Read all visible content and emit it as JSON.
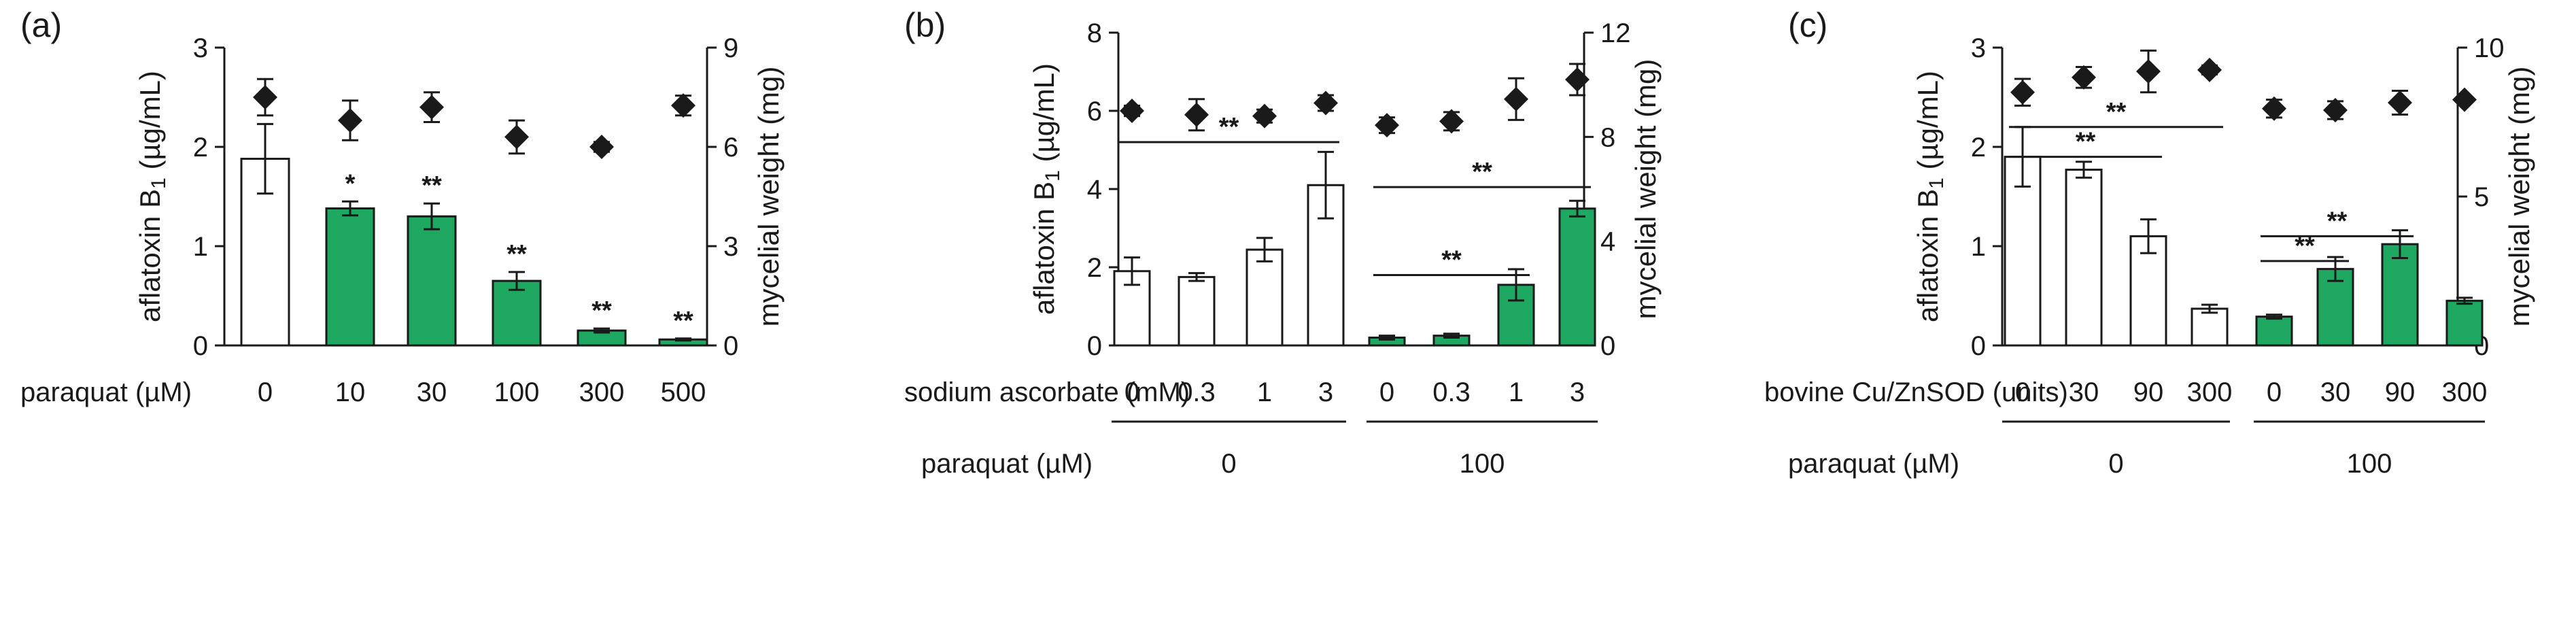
{
  "chart_data": [
    {
      "type": "bar",
      "panel": "(a)",
      "ylabel_left": "aflatoxin B",
      "ylabel_left_sub": "1",
      "ylabel_left_unit": " (µg/mL)",
      "ylabel_right": "mycelial weight (mg)",
      "ylim_left": [
        0,
        3
      ],
      "ylim_right": [
        0,
        9
      ],
      "yticks_left": [
        "0",
        "1",
        "2",
        "3"
      ],
      "yticks_right": [
        "0",
        "3",
        "6",
        "9"
      ],
      "factor_label": "paraquat (µM)",
      "categories": [
        "0",
        "10",
        "30",
        "100",
        "300",
        "500"
      ],
      "series": [
        {
          "name": "aflatoxin B1",
          "values": [
            1.88,
            1.38,
            1.3,
            0.65,
            0.15,
            0.06
          ],
          "errors": [
            0.35,
            0.07,
            0.13,
            0.09,
            0.02,
            0.01
          ],
          "fills": [
            "white",
            "green",
            "green",
            "green",
            "green",
            "green"
          ]
        },
        {
          "name": "mycelial weight",
          "values": [
            7.5,
            6.8,
            7.2,
            6.3,
            6.0,
            7.25
          ],
          "errors": [
            0.55,
            0.6,
            0.45,
            0.5,
            0.15,
            0.3
          ]
        }
      ],
      "significance": [
        "",
        "*",
        "**",
        "**",
        "**",
        "**"
      ]
    },
    {
      "type": "bar",
      "panel": "(b)",
      "ylabel_left": "aflatoxin B",
      "ylabel_left_sub": "1",
      "ylabel_left_unit": " (µg/mL)",
      "ylabel_right": "mycelial weight (mg)",
      "ylim_left": [
        0,
        8
      ],
      "ylim_right": [
        0,
        12
      ],
      "yticks_left": [
        "0",
        "2",
        "4",
        "6",
        "8"
      ],
      "yticks_right": [
        "0",
        "4",
        "8",
        "12"
      ],
      "factor_label": "sodium ascorbate (mM)",
      "categories": [
        "0",
        "0.3",
        "1",
        "3",
        "0",
        "0.3",
        "1",
        "3"
      ],
      "group_label": "paraquat (µM)",
      "groups": [
        "0",
        "100"
      ],
      "series": [
        {
          "name": "aflatoxin B1",
          "values": [
            1.9,
            1.75,
            2.45,
            4.1,
            0.2,
            0.25,
            1.55,
            3.5
          ],
          "errors": [
            0.35,
            0.1,
            0.3,
            0.85,
            0.05,
            0.05,
            0.4,
            0.2
          ],
          "fills": [
            "white",
            "white",
            "white",
            "white",
            "green",
            "green",
            "green",
            "green"
          ]
        },
        {
          "name": "mycelial weight",
          "values": [
            9.0,
            8.85,
            8.8,
            9.3,
            8.45,
            8.6,
            9.45,
            10.2
          ],
          "errors": [
            0.2,
            0.6,
            0.25,
            0.3,
            0.3,
            0.35,
            0.8,
            0.6
          ]
        }
      ],
      "brackets": [
        {
          "from": 0,
          "to": 3,
          "y": 5.2,
          "label": "**"
        },
        {
          "from": 4,
          "to": 7,
          "y": 4.05,
          "label": "**"
        },
        {
          "from": 4,
          "to": 6,
          "y": 1.8,
          "label": "**"
        }
      ]
    },
    {
      "type": "bar",
      "panel": "(c)",
      "ylabel_left": "aflatoxin B",
      "ylabel_left_sub": "1",
      "ylabel_left_unit": " (µg/mL)",
      "ylabel_right": "mycelial weight (mg)",
      "ylim_left": [
        0,
        3
      ],
      "ylim_right": [
        0,
        10
      ],
      "yticks_left": [
        "0",
        "1",
        "2",
        "3"
      ],
      "yticks_right": [
        "0",
        "5",
        "10"
      ],
      "factor_label": "bovine Cu/ZnSOD (units)",
      "categories": [
        "0",
        "30",
        "90",
        "300",
        "0",
        "30",
        "90",
        "300"
      ],
      "group_label": "paraquat (µM)",
      "groups": [
        "0",
        "100"
      ],
      "series": [
        {
          "name": "aflatoxin B1",
          "values": [
            1.9,
            1.77,
            1.1,
            0.37,
            0.29,
            0.77,
            1.02,
            0.45
          ],
          "errors": [
            0.3,
            0.08,
            0.17,
            0.04,
            0.02,
            0.12,
            0.14,
            0.03
          ],
          "fills": [
            "white",
            "white",
            "white",
            "white",
            "green",
            "green",
            "green",
            "green"
          ]
        },
        {
          "name": "mycelial weight",
          "values": [
            8.5,
            9.0,
            9.2,
            9.25,
            7.95,
            7.9,
            8.15,
            8.25
          ],
          "errors": [
            0.45,
            0.35,
            0.7,
            0.15,
            0.3,
            0.3,
            0.4,
            0.1
          ]
        }
      ],
      "brackets": [
        {
          "from": 0,
          "to": 3,
          "y": 2.2,
          "label": "**"
        },
        {
          "from": 0,
          "to": 2,
          "y": 1.9,
          "label": "**"
        },
        {
          "from": 4,
          "to": 6,
          "y": 1.1,
          "label": "**"
        },
        {
          "from": 4,
          "to": 5,
          "y": 0.85,
          "label": "**"
        }
      ]
    }
  ],
  "colors": {
    "green": "#1fa862",
    "white": "#ffffff",
    "ink": "#1a1a1a"
  }
}
